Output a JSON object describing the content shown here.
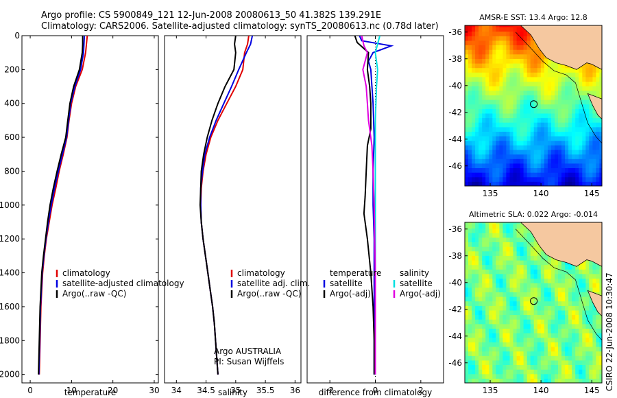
{
  "header": {
    "line1": "Argo profile: CS 5900849_121 12-Jun-2008 20080613_50 41.382S 139.291E",
    "line2": "Climatology: CARS2006. Satellite-adjusted climatology: synTS_20080613.nc (0.78d later)"
  },
  "credit": "CSIRO 22-Jun-2008 10:30:47",
  "colors": {
    "climatology": "#e00000",
    "satellite": "#0000e0",
    "argo": "#000000",
    "salinity_satellite": "#00e0e0",
    "salinity_argo": "#e000e0",
    "land": "#f5c8a0"
  },
  "chart_data": [
    {
      "type": "line",
      "name": "temperature-profile",
      "xlabel": "temperature",
      "ylabel": "",
      "xlim": [
        -2,
        31
      ],
      "ylim": [
        2050,
        0
      ],
      "xticks": [
        0,
        10,
        20,
        30
      ],
      "yticks": [
        0,
        200,
        400,
        600,
        800,
        1000,
        1200,
        1400,
        1600,
        1800,
        2000
      ],
      "legend": [
        "climatology",
        "satellite-adjusted climatology",
        "Argo(..raw -QC)"
      ],
      "legend_placement": "center-right",
      "series": [
        {
          "name": "climatology",
          "color": "#e00000",
          "points": [
            [
              13.8,
              0
            ],
            [
              13.6,
              50
            ],
            [
              13.4,
              100
            ],
            [
              12.6,
              200
            ],
            [
              11.0,
              300
            ],
            [
              10.0,
              400
            ],
            [
              9.4,
              500
            ],
            [
              8.9,
              600
            ],
            [
              8.0,
              700
            ],
            [
              7.0,
              800
            ],
            [
              6.2,
              900
            ],
            [
              5.3,
              1000
            ],
            [
              4.6,
              1100
            ],
            [
              3.9,
              1200
            ],
            [
              3.4,
              1300
            ],
            [
              3.0,
              1400
            ],
            [
              2.8,
              1500
            ],
            [
              2.6,
              1600
            ],
            [
              2.5,
              1700
            ],
            [
              2.4,
              1800
            ],
            [
              2.3,
              1900
            ],
            [
              2.2,
              2000
            ]
          ]
        },
        {
          "name": "satellite-adjusted climatology",
          "color": "#0000e0",
          "points": [
            [
              13.1,
              0
            ],
            [
              13.0,
              50
            ],
            [
              12.9,
              100
            ],
            [
              12.2,
              200
            ],
            [
              10.8,
              300
            ],
            [
              9.8,
              400
            ],
            [
              9.3,
              500
            ],
            [
              8.8,
              600
            ],
            [
              7.8,
              700
            ],
            [
              6.8,
              800
            ],
            [
              5.9,
              900
            ],
            [
              5.1,
              1000
            ],
            [
              4.4,
              1100
            ],
            [
              3.8,
              1200
            ],
            [
              3.3,
              1300
            ],
            [
              2.9,
              1400
            ],
            [
              2.7,
              1500
            ],
            [
              2.5,
              1600
            ],
            [
              2.4,
              1700
            ],
            [
              2.3,
              1800
            ],
            [
              2.2,
              1900
            ],
            [
              2.1,
              2000
            ]
          ]
        },
        {
          "name": "Argo(..raw -QC)",
          "color": "#000000",
          "points": [
            [
              12.7,
              0
            ],
            [
              12.7,
              50
            ],
            [
              12.6,
              100
            ],
            [
              11.9,
              200
            ],
            [
              10.5,
              300
            ],
            [
              9.6,
              400
            ],
            [
              9.1,
              500
            ],
            [
              8.6,
              600
            ],
            [
              7.5,
              700
            ],
            [
              6.5,
              800
            ],
            [
              5.6,
              900
            ],
            [
              4.8,
              1000
            ],
            [
              4.2,
              1100
            ],
            [
              3.7,
              1200
            ],
            [
              3.2,
              1300
            ],
            [
              2.8,
              1400
            ],
            [
              2.6,
              1500
            ],
            [
              2.4,
              1600
            ],
            [
              2.3,
              1700
            ],
            [
              2.2,
              1800
            ],
            [
              2.1,
              1900
            ],
            [
              2.0,
              2000
            ]
          ]
        }
      ]
    },
    {
      "type": "line",
      "name": "salinity-profile",
      "xlabel": "salinity",
      "ylabel": "",
      "xlim": [
        33.8,
        36.1
      ],
      "ylim": [
        2050,
        0
      ],
      "xticks": [
        34,
        34.5,
        35,
        35.5,
        36
      ],
      "tick_labels": [
        "34",
        "34.5",
        "35",
        "35.5",
        "36"
      ],
      "legend": [
        "climatology",
        "satellite adj. clim.",
        "Argo(..raw -QC)"
      ],
      "legend_placement": "center-right",
      "annotation": [
        "Argo AUSTRALIA",
        "PI: Susan Wijffels"
      ],
      "series": [
        {
          "name": "climatology",
          "color": "#e00000",
          "points": [
            [
              35.22,
              0
            ],
            [
              35.2,
              50
            ],
            [
              35.15,
              100
            ],
            [
              35.12,
              200
            ],
            [
              35.0,
              300
            ],
            [
              34.85,
              400
            ],
            [
              34.7,
              500
            ],
            [
              34.58,
              600
            ],
            [
              34.5,
              700
            ],
            [
              34.45,
              800
            ],
            [
              34.42,
              900
            ],
            [
              34.41,
              1000
            ],
            [
              34.42,
              1100
            ],
            [
              34.45,
              1200
            ],
            [
              34.49,
              1300
            ],
            [
              34.53,
              1400
            ],
            [
              34.57,
              1500
            ],
            [
              34.61,
              1600
            ],
            [
              34.64,
              1700
            ],
            [
              34.66,
              1800
            ],
            [
              34.68,
              1900
            ],
            [
              34.7,
              2000
            ]
          ]
        },
        {
          "name": "satellite adj. clim.",
          "color": "#0000e0",
          "points": [
            [
              35.28,
              0
            ],
            [
              35.25,
              50
            ],
            [
              35.18,
              100
            ],
            [
              35.05,
              200
            ],
            [
              34.93,
              300
            ],
            [
              34.8,
              400
            ],
            [
              34.67,
              500
            ],
            [
              34.56,
              600
            ],
            [
              34.48,
              700
            ],
            [
              34.44,
              800
            ],
            [
              34.41,
              900
            ],
            [
              34.41,
              1000
            ],
            [
              34.42,
              1100
            ],
            [
              34.45,
              1200
            ],
            [
              34.49,
              1300
            ],
            [
              34.53,
              1400
            ],
            [
              34.57,
              1500
            ],
            [
              34.61,
              1600
            ],
            [
              34.64,
              1700
            ],
            [
              34.66,
              1800
            ],
            [
              34.68,
              1900
            ],
            [
              34.7,
              2000
            ]
          ]
        },
        {
          "name": "Argo(..raw -QC)",
          "color": "#000000",
          "points": [
            [
              35.0,
              0
            ],
            [
              34.98,
              50
            ],
            [
              35.0,
              100
            ],
            [
              34.97,
              200
            ],
            [
              34.82,
              300
            ],
            [
              34.7,
              400
            ],
            [
              34.6,
              500
            ],
            [
              34.52,
              600
            ],
            [
              34.46,
              700
            ],
            [
              34.42,
              800
            ],
            [
              34.41,
              900
            ],
            [
              34.4,
              1000
            ],
            [
              34.42,
              1100
            ],
            [
              34.45,
              1200
            ],
            [
              34.49,
              1300
            ],
            [
              34.53,
              1400
            ],
            [
              34.57,
              1500
            ],
            [
              34.61,
              1600
            ],
            [
              34.64,
              1700
            ],
            [
              34.66,
              1800
            ],
            [
              34.68,
              1900
            ],
            [
              34.7,
              2000
            ]
          ]
        }
      ]
    },
    {
      "type": "line",
      "name": "difference-profile",
      "xlabel": "difference from climatology",
      "ylabel": "",
      "xlim": [
        -3,
        3
      ],
      "ylim": [
        2050,
        0
      ],
      "xticks": [
        -2,
        0,
        2
      ],
      "legend_groups": [
        {
          "header": "temperature",
          "items": [
            "satellite",
            "Argo(-adj)"
          ]
        },
        {
          "header": "salinity",
          "items": [
            "satellite",
            "Argo(-adj)"
          ]
        }
      ],
      "series": [
        {
          "name": "temperature satellite",
          "color": "#0000e0",
          "points": [
            [
              -0.7,
              0
            ],
            [
              -0.6,
              30
            ],
            [
              0.7,
              60
            ],
            [
              -0.1,
              100
            ],
            [
              -0.3,
              150
            ],
            [
              -0.2,
              200
            ],
            [
              -0.15,
              300
            ],
            [
              -0.1,
              400
            ],
            [
              -0.05,
              600
            ],
            [
              -0.1,
              800
            ],
            [
              -0.1,
              1000
            ],
            [
              -0.05,
              1200
            ],
            [
              -0.05,
              1400
            ],
            [
              -0.05,
              1600
            ],
            [
              -0.05,
              1800
            ],
            [
              -0.05,
              2000
            ]
          ]
        },
        {
          "name": "temperature Argo(-adj)",
          "color": "#000000",
          "points": [
            [
              -0.9,
              0
            ],
            [
              -0.8,
              40
            ],
            [
              -0.3,
              100
            ],
            [
              -0.35,
              200
            ],
            [
              -0.25,
              300
            ],
            [
              -0.2,
              400
            ],
            [
              -0.2,
              550
            ],
            [
              -0.35,
              650
            ],
            [
              -0.4,
              800
            ],
            [
              -0.45,
              950
            ],
            [
              -0.5,
              1050
            ],
            [
              -0.35,
              1200
            ],
            [
              -0.2,
              1400
            ],
            [
              -0.1,
              1600
            ],
            [
              -0.05,
              1800
            ],
            [
              -0.05,
              2000
            ]
          ]
        },
        {
          "name": "salinity satellite",
          "color": "#00e0e0",
          "points": [
            [
              0.2,
              0
            ],
            [
              0.1,
              50
            ],
            [
              0.0,
              100
            ],
            [
              0.1,
              200
            ],
            [
              0.05,
              300
            ],
            [
              0.0,
              500
            ],
            [
              0.0,
              800
            ],
            [
              0.0,
              1200
            ],
            [
              0.0,
              1600
            ],
            [
              0.0,
              2000
            ]
          ]
        },
        {
          "name": "salinity Argo(-adj)",
          "color": "#e000e0",
          "points": [
            [
              -0.6,
              0
            ],
            [
              -0.5,
              60
            ],
            [
              -0.35,
              100
            ],
            [
              -0.55,
              200
            ],
            [
              -0.4,
              300
            ],
            [
              -0.35,
              400
            ],
            [
              -0.3,
              500
            ],
            [
              -0.15,
              650
            ],
            [
              -0.1,
              800
            ],
            [
              -0.05,
              1000
            ],
            [
              0.0,
              1400
            ],
            [
              0.0,
              2000
            ]
          ]
        }
      ]
    },
    {
      "type": "heatmap",
      "name": "sst-map",
      "title": "AMSR-E SST: 13.4 Argo: 12.8",
      "xlim": [
        132.5,
        146
      ],
      "ylim": [
        -47.5,
        -35.5
      ],
      "xticks": [
        135,
        140,
        145
      ],
      "yticks": [
        -36,
        -38,
        -40,
        -42,
        -44,
        -46
      ],
      "marker": {
        "lon": 139.291,
        "lat": -41.382
      }
    },
    {
      "type": "heatmap",
      "name": "sla-map",
      "title": "Altimetric SLA: 0.022 Argo: -0.014",
      "xlim": [
        132.5,
        146
      ],
      "ylim": [
        -47.5,
        -35.5
      ],
      "xticks": [
        135,
        140,
        145
      ],
      "yticks": [
        -36,
        -38,
        -40,
        -42,
        -44,
        -46
      ],
      "marker": {
        "lon": 139.291,
        "lat": -41.382
      }
    }
  ]
}
